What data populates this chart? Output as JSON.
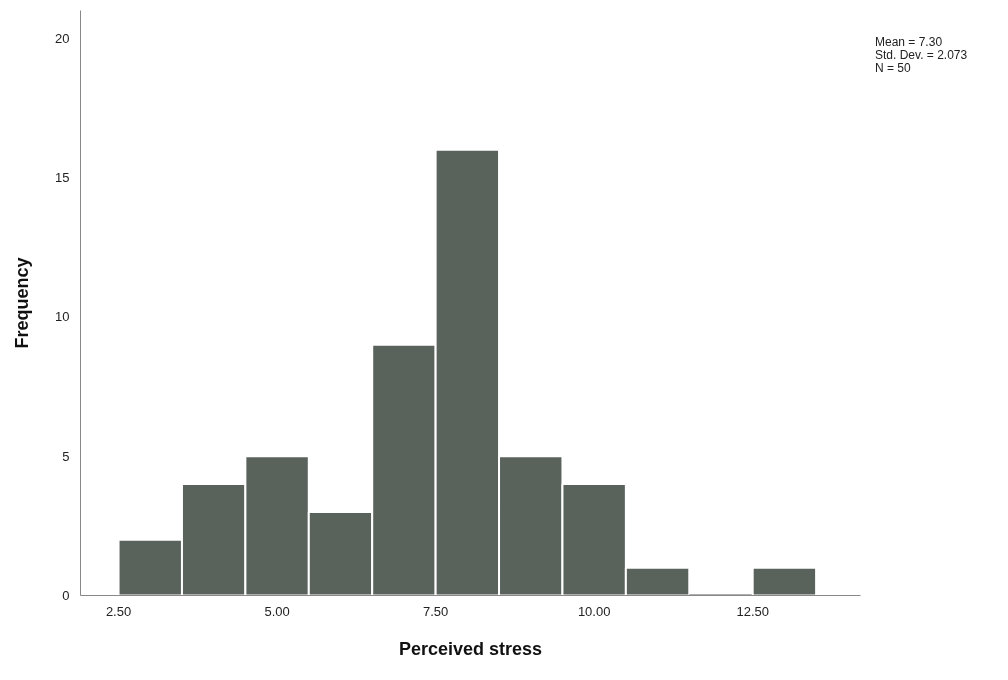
{
  "chart_data": {
    "type": "histogram",
    "xlabel": "Perceived stress",
    "ylabel": "Frequency",
    "bins": [
      2.5,
      3.5,
      4.5,
      5.5,
      6.5,
      7.5,
      8.5,
      9.5,
      10.5,
      11.5,
      12.5,
      13.5
    ],
    "values": [
      2,
      4,
      5,
      3,
      9,
      16,
      5,
      4,
      1,
      0,
      1
    ],
    "color": "#5a625c",
    "xlim": [
      1.9,
      14.2
    ],
    "xticks": [
      {
        "value": 2.5,
        "label": "2.50"
      },
      {
        "value": 5,
        "label": "5.00"
      },
      {
        "value": 7.5,
        "label": "7.50"
      },
      {
        "value": 10,
        "label": "10.00"
      },
      {
        "value": 12.5,
        "label": "12.50"
      }
    ],
    "ylim": [
      0,
      21
    ],
    "yticks": [
      0,
      5,
      10,
      15,
      20
    ],
    "grid": false,
    "annotations": [
      "Mean = 7.30",
      "Std. Dev. = 2.073",
      "N = 50"
    ]
  }
}
